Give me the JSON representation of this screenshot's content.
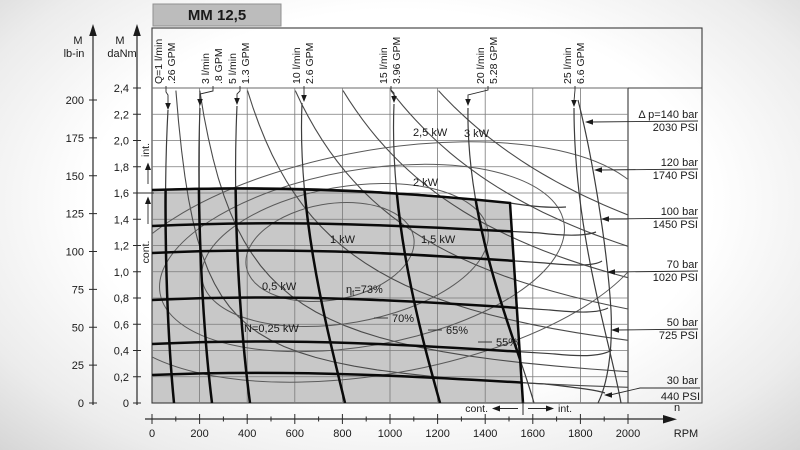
{
  "title": "MM 12,5",
  "chart_data": {
    "type": "line",
    "title": "MM 12,5",
    "x_axis": {
      "symbol": "n",
      "unit": "RPM",
      "min": 0,
      "max": 2000,
      "minor_step": 100,
      "ticks": [
        0,
        200,
        400,
        600,
        800,
        1000,
        1200,
        1400,
        1600,
        1800,
        2000
      ]
    },
    "y_axis_lbin": {
      "symbol": "M",
      "unit": "lb-in",
      "ticks": [
        0,
        25,
        50,
        75,
        100,
        125,
        150,
        175,
        200
      ]
    },
    "y_axis_danm": {
      "symbol": "M",
      "unit": "daNm",
      "ticks": [
        "0",
        "0,2",
        "0,4",
        "0,6",
        "0,8",
        "1,0",
        "1,2",
        "1,4",
        "1,6",
        "1,8",
        "2,0",
        "2,2",
        "2,4"
      ]
    },
    "flow_lines": [
      {
        "lmin": 1,
        "label": "Q=1 l/min",
        "gpm_label": ".26 GPM",
        "gpm": 0.26
      },
      {
        "lmin": 3,
        "label": "3 l/min",
        "gpm_label": ".8 GPM",
        "gpm": 0.8
      },
      {
        "lmin": 5,
        "label": "5 l/min",
        "gpm_label": "1.3 GPM",
        "gpm": 1.3
      },
      {
        "lmin": 10,
        "label": "10 l/min",
        "gpm_label": "2.6 GPM",
        "gpm": 2.6
      },
      {
        "lmin": 15,
        "label": "15 l/min",
        "gpm_label": "3.96 GPM",
        "gpm": 3.96
      },
      {
        "lmin": 20,
        "label": "20 l/min",
        "gpm_label": "5.28 GPM",
        "gpm": 5.28
      },
      {
        "lmin": 25,
        "label": "25 l/min",
        "gpm_label": "6.6 GPM",
        "gpm": 6.6
      }
    ],
    "pressure_lines": [
      {
        "bar": 140,
        "label": "Δ p=140 bar",
        "psi_label": "2030 PSI",
        "psi": 2030
      },
      {
        "bar": 120,
        "label": "120 bar",
        "psi_label": "1740 PSI",
        "psi": 1740
      },
      {
        "bar": 100,
        "label": "100 bar",
        "psi_label": "1450 PSI",
        "psi": 1450
      },
      {
        "bar": 70,
        "label": "70 bar",
        "psi_label": "1020 PSI",
        "psi": 1020
      },
      {
        "bar": 50,
        "label": "50 bar",
        "psi_label": "725 PSI",
        "psi": 725
      },
      {
        "bar": 30,
        "label": "30 bar",
        "psi_label": "440 PSI",
        "psi": 440
      }
    ],
    "power_curves": [
      {
        "kw": 0.25,
        "label": "N=0,25 kW"
      },
      {
        "kw": 0.5,
        "label": "0,5 kW"
      },
      {
        "kw": 1,
        "label": "1 kW"
      },
      {
        "kw": 1.5,
        "label": "1,5 kW"
      },
      {
        "kw": 2,
        "label": "2 kW"
      },
      {
        "kw": 2.5,
        "label": "2,5 kW"
      },
      {
        "kw": 3,
        "label": "3 kW"
      }
    ],
    "efficiency_contours": [
      {
        "percent": 73,
        "symbol": "η",
        "sub": "t",
        "value": "=73%"
      },
      {
        "percent": 70,
        "value": "70%"
      },
      {
        "percent": 65,
        "value": "65%"
      },
      {
        "percent": 55,
        "value": "55%"
      }
    ],
    "operating_limits": {
      "continuous_max_torque_danm": 1.6,
      "continuous_max_speed_rpm": 1550,
      "axis_int": "int.",
      "axis_cont": "cont.",
      "bottom_cont": "cont.",
      "bottom_int": "int."
    }
  }
}
